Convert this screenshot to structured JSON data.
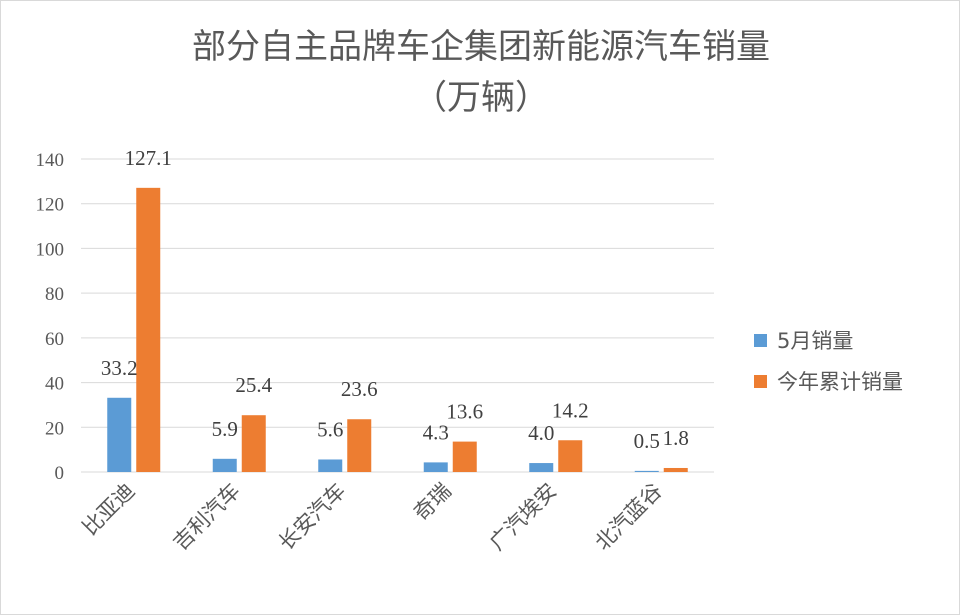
{
  "chart_data": {
    "type": "bar",
    "title_lines": [
      "部分自主品牌车企集团新能源汽车销量",
      "（万辆）"
    ],
    "categories": [
      "比亚迪",
      "吉利汽车",
      "长安汽车",
      "奇瑞",
      "广汽埃安",
      "北汽蓝谷"
    ],
    "series": [
      {
        "name": "5月销量",
        "values": [
          33.2,
          5.9,
          5.6,
          4.3,
          4.0,
          0.5
        ],
        "labels": [
          "33.2",
          "5.9",
          "5.6",
          "4.3",
          "4.0",
          "0.5"
        ],
        "color": "#5B9BD5"
      },
      {
        "name": "今年累计销量",
        "values": [
          127.1,
          25.4,
          23.6,
          13.6,
          14.2,
          1.8
        ],
        "labels": [
          "127.1",
          "25.4",
          "23.6",
          "13.6",
          "14.2",
          "1.8"
        ],
        "color": "#ED7D31"
      }
    ],
    "yticks": [
      0,
      20,
      40,
      60,
      80,
      100,
      120,
      140
    ],
    "ylim": [
      0,
      140
    ],
    "grid": true,
    "legend_position": "right",
    "gridline_color": "#d9d9d9"
  }
}
